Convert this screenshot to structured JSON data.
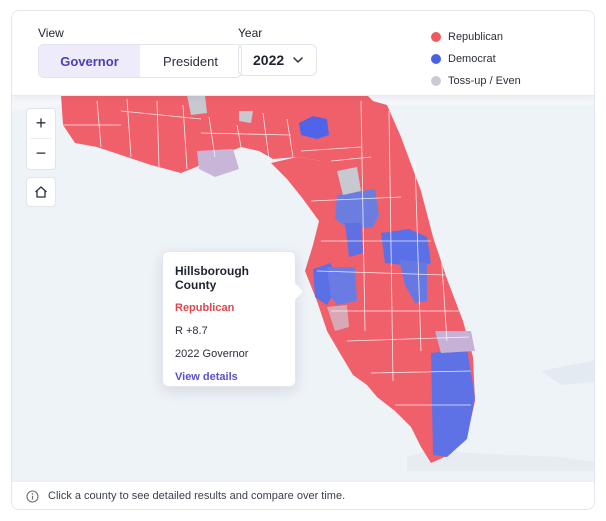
{
  "controls": {
    "view_label": "View",
    "view_options": [
      "Governor",
      "President"
    ],
    "view_selected": "Governor",
    "year_label": "Year",
    "year_value": "2022"
  },
  "legend": [
    {
      "label": "Republican",
      "color": "#f05a5f"
    },
    {
      "label": "Democrat",
      "color": "#4a63e6"
    },
    {
      "label": "Toss-up / Even",
      "color": "#c9ccd6"
    }
  ],
  "map": {
    "zoom_in": "+",
    "zoom_out": "−",
    "home_icon": "home-icon",
    "colors": {
      "republican": "#f0606a",
      "democrat": "#5c73e6",
      "tossup": "#c6bcd9",
      "even": "#c7c9d1",
      "water": "#eef3f8"
    }
  },
  "tooltip": {
    "county": "Hillsborough County",
    "party": "Republican",
    "margin": "R +8.7",
    "race": "2022 Governor",
    "link": "View details"
  },
  "footer": {
    "text": "Click a county to see detailed results and compare over time."
  }
}
